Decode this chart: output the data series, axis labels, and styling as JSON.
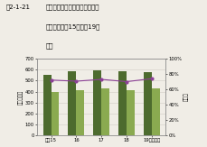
{
  "years": [
    "平成15",
    "16",
    "17",
    "18",
    "19（年度）"
  ],
  "total_bars": [
    550,
    583,
    591,
    585,
    578
  ],
  "achieved_bars": [
    397,
    412,
    432,
    410,
    428
  ],
  "achievement_rate": [
    72.2,
    70.7,
    73.1,
    70.1,
    74.0
  ],
  "bar_width": 0.32,
  "dark_green": "#4d6b2e",
  "light_green": "#8aaa50",
  "line_color": "#8b4096",
  "bg_color": "#f0ede6",
  "ylim_left": [
    0,
    700
  ],
  "ylim_right": [
    0,
    100
  ],
  "yticks_left": [
    0,
    100,
    200,
    300,
    400,
    500,
    600,
    700
  ],
  "yticks_right": [
    0,
    20,
    40,
    60,
    80,
    100
  ],
  "ylabel_left": "測定地点数",
  "ylabel_right": "達成率",
  "title_line1": "図2-1-21",
  "title_line2": "航空機騒音に係る環境基準の達",
  "title_line3": "成状況（平成15年度～19年",
  "title_line4": "度）",
  "tick_fontsize": 3.8,
  "axis_label_fontsize": 4.0,
  "title_fontsize": 5.0
}
